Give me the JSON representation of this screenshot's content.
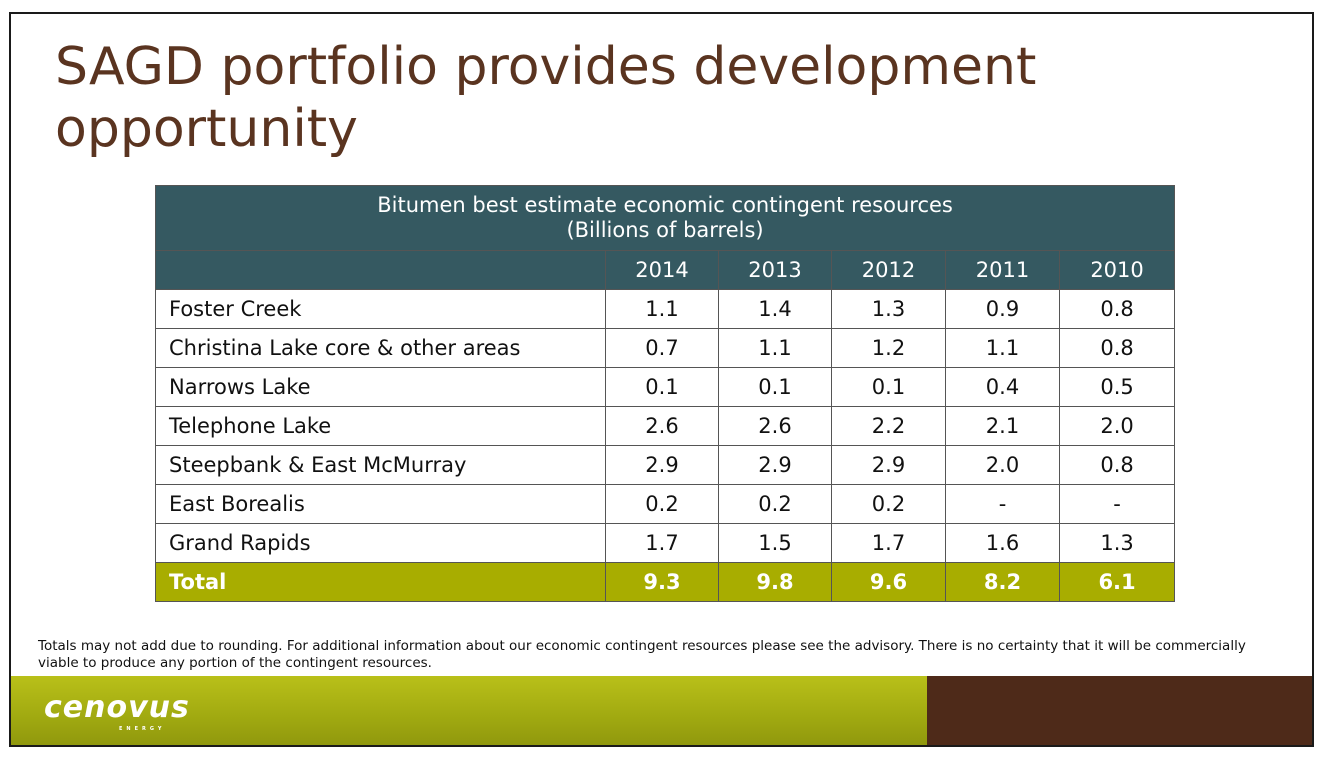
{
  "title": "SAGD portfolio provides development opportunity",
  "table": {
    "header_line1": "Bitumen best estimate economic contingent resources",
    "header_line2": "(Billions of barrels)",
    "years": [
      "2014",
      "2013",
      "2012",
      "2011",
      "2010"
    ],
    "rows": [
      {
        "name": "Foster Creek",
        "values": [
          "1.1",
          "1.4",
          "1.3",
          "0.9",
          "0.8"
        ]
      },
      {
        "name": "Christina Lake core & other areas",
        "values": [
          "0.7",
          "1.1",
          "1.2",
          "1.1",
          "0.8"
        ]
      },
      {
        "name": "Narrows Lake",
        "values": [
          "0.1",
          "0.1",
          "0.1",
          "0.4",
          "0.5"
        ]
      },
      {
        "name": "Telephone Lake",
        "values": [
          "2.6",
          "2.6",
          "2.2",
          "2.1",
          "2.0"
        ]
      },
      {
        "name": "Steepbank & East McMurray",
        "values": [
          "2.9",
          "2.9",
          "2.9",
          "2.0",
          "0.8"
        ]
      },
      {
        "name": "East Borealis",
        "values": [
          "0.2",
          "0.2",
          "0.2",
          "-",
          "-"
        ]
      },
      {
        "name": "Grand Rapids",
        "values": [
          "1.7",
          "1.5",
          "1.7",
          "1.6",
          "1.3"
        ]
      }
    ],
    "total": {
      "name": "Total",
      "values": [
        "9.3",
        "9.8",
        "9.6",
        "8.2",
        "6.1"
      ]
    }
  },
  "footnote": "Totals may not add due to rounding. For additional information about our economic contingent resources please see the advisory. There is no certainty that it will be commercially viable to produce any portion of the contingent resources.",
  "logo": {
    "text": "cenovus",
    "subtext": "ENERGY"
  },
  "colors": {
    "title": "#5a3420",
    "header": "#355961",
    "total": "#a8ad00",
    "footer_green": "#a3ab12",
    "footer_brown": "#4e2a19"
  }
}
